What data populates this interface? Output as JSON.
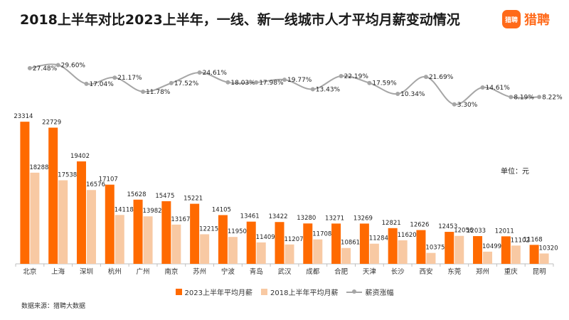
{
  "header": {
    "title": "2018上半年对比2023上半年，一线、新一线城市人才平均月薪变动情况",
    "logo_icon": "猎聘",
    "logo_text": "猎聘"
  },
  "unit_label": "单位：元",
  "source": "数据来源：猎聘大数据",
  "colors": {
    "s2023": "#ff6a00",
    "s2018": "#f8c9a3",
    "growth": "#a6a6a6"
  },
  "chart_data": {
    "type": "bar",
    "categories": [
      "北京",
      "上海",
      "深圳",
      "杭州",
      "广州",
      "南京",
      "苏州",
      "宁波",
      "青岛",
      "武汉",
      "成都",
      "合肥",
      "天津",
      "长沙",
      "西安",
      "东莞",
      "郑州",
      "重庆",
      "昆明"
    ],
    "series": [
      {
        "name": "2023上半年平均月薪",
        "values": [
          23314,
          22729,
          19402,
          17107,
          15628,
          15475,
          15221,
          14105,
          13461,
          13422,
          13280,
          13271,
          13269,
          12821,
          12626,
          12453,
          12033,
          12011,
          11168
        ]
      },
      {
        "name": "2018上半年平均月薪",
        "values": [
          18288,
          17538,
          16576,
          14118,
          13982,
          13167,
          12215,
          11950,
          11409,
          11207,
          11708,
          10861,
          11284,
          11620,
          10375,
          12056,
          10499,
          11102,
          10320
        ]
      },
      {
        "name": "薪资涨幅",
        "type": "line",
        "values": [
          "27.48%",
          "29.60%",
          "17.04%",
          "21.17%",
          "11.78%",
          "17.52%",
          "24.61%",
          "18.03%",
          "17.98%",
          "19.77%",
          "13.43%",
          "22.19%",
          "17.59%",
          "10.34%",
          "21.69%",
          "3.30%",
          "14.61%",
          "8.19%",
          "8.22%"
        ]
      }
    ],
    "ylim": [
      9300,
      25500
    ],
    "y2lim": [
      -22,
      36
    ],
    "legend_position": "bottom",
    "grid": false
  }
}
